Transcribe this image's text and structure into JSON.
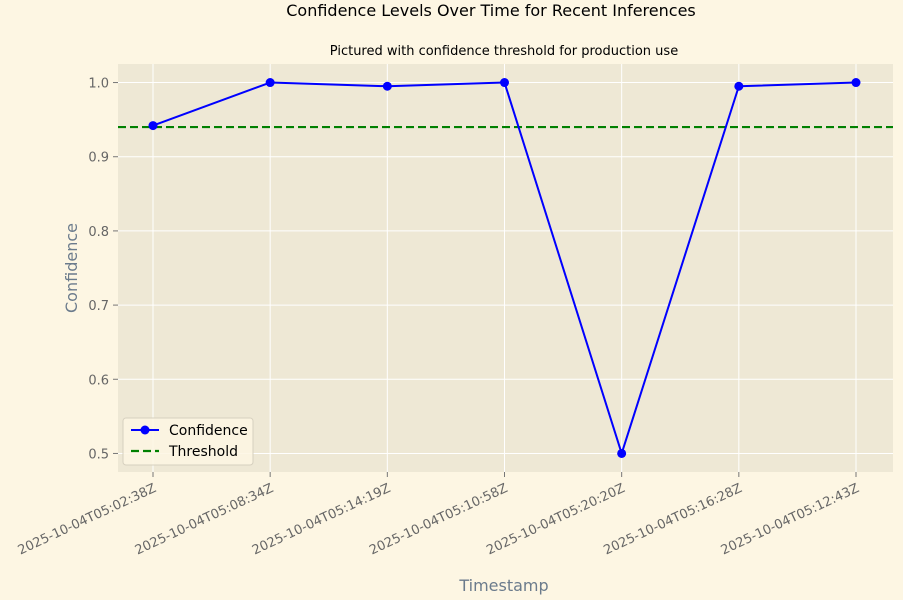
{
  "chart_data": {
    "type": "line",
    "title": "Confidence Levels Over Time for Recent Inferences",
    "subtitle": "Pictured with confidence threshold for production use",
    "xlabel": "Timestamp",
    "ylabel": "Confidence",
    "categories": [
      "2025-10-04T05:02:38Z",
      "2025-10-04T05:08:34Z",
      "2025-10-04T05:14:19Z",
      "2025-10-04T05:10:58Z",
      "2025-10-04T05:20:20Z",
      "2025-10-04T05:16:28Z",
      "2025-10-04T05:12:43Z"
    ],
    "series": [
      {
        "name": "Confidence",
        "values": [
          0.942,
          1.0,
          0.995,
          1.0,
          0.5,
          0.995,
          1.0
        ],
        "color": "#0000ff"
      }
    ],
    "threshold": {
      "name": "Threshold",
      "value": 0.94,
      "color": "#008000",
      "style": "dashed"
    },
    "ylim": [
      0.475,
      1.025
    ],
    "yticks": [
      0.5,
      0.6,
      0.7,
      0.8,
      0.9,
      1.0
    ],
    "ytick_labels": [
      "0.5",
      "0.6",
      "0.7",
      "0.8",
      "0.9",
      "1.0"
    ],
    "grid": true,
    "legend_position": "lower-left",
    "colors": {
      "figure_bg": "#fdf6e3",
      "plot_bg": "#eee8d5",
      "grid": "#ffffff"
    }
  }
}
